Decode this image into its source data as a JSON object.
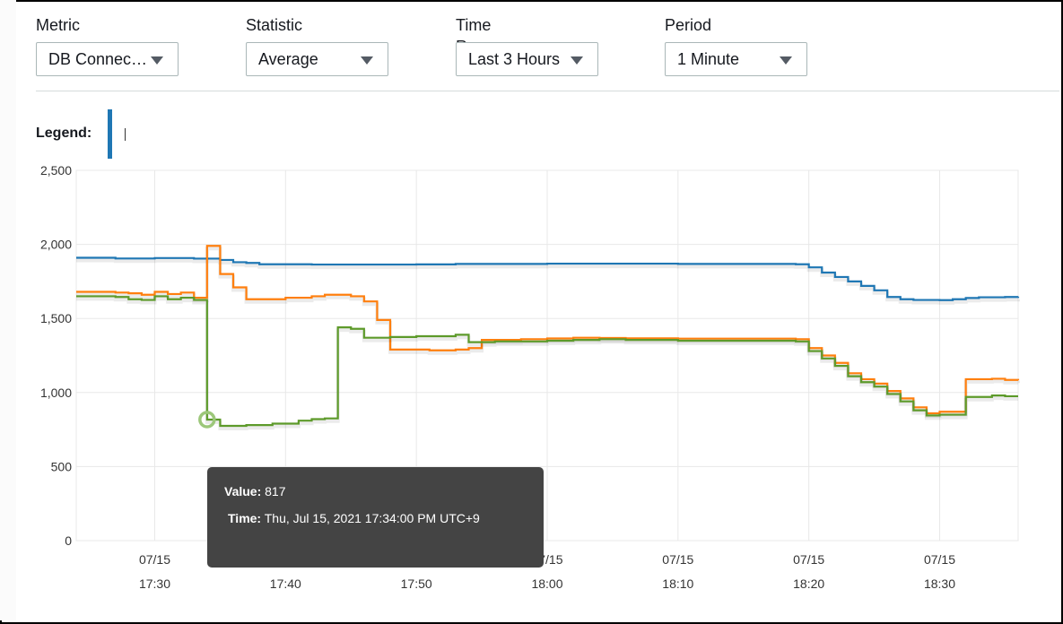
{
  "controls": [
    {
      "label": "Metric",
      "value": "DB Connec…"
    },
    {
      "label": "Statistic",
      "value": "Average"
    },
    {
      "label": "Time Range",
      "value": "Last 3 Hours"
    },
    {
      "label": "Period",
      "value": "1 Minute"
    }
  ],
  "legend": {
    "label": "Legend:"
  },
  "tooltip": {
    "value_label": "Value:",
    "value": "817",
    "time_label": "Time:",
    "time": "Thu, Jul 15, 2021 17:34:00 PM UTC+9"
  },
  "chart_data": {
    "type": "line",
    "step": true,
    "ylim": [
      0,
      2500
    ],
    "yticks": [
      "0",
      "500",
      "1,000",
      "1,500",
      "2,000",
      "2,500"
    ],
    "ytick_values": [
      0,
      500,
      1000,
      1500,
      2000,
      2500
    ],
    "xticks": [
      {
        "date": "07/15",
        "time": "17:30"
      },
      {
        "date": "07/15",
        "time": "17:40"
      },
      {
        "date": "07/15",
        "time": "17:50"
      },
      {
        "date": "07/15",
        "time": "18:00"
      },
      {
        "date": "07/15",
        "time": "18:10"
      },
      {
        "date": "07/15",
        "time": "18:20"
      },
      {
        "date": "07/15",
        "time": "18:30"
      }
    ],
    "xtick_values": [
      "17:30",
      "17:40",
      "17:50",
      "18:00",
      "18:10",
      "18:20",
      "18:30"
    ],
    "xlim": [
      "17:24",
      "18:36"
    ],
    "grid": true,
    "series": [
      {
        "color": "#1f77b4",
        "points": [
          [
            "17:24",
            1910
          ],
          [
            "17:27",
            1905
          ],
          [
            "17:30",
            1908
          ],
          [
            "17:33",
            1904
          ],
          [
            "17:35",
            1895
          ],
          [
            "17:36",
            1880
          ],
          [
            "17:37",
            1875
          ],
          [
            "17:38",
            1866
          ],
          [
            "17:42",
            1864
          ],
          [
            "17:50",
            1865
          ],
          [
            "17:53",
            1868
          ],
          [
            "18:00",
            1870
          ],
          [
            "18:10",
            1868
          ],
          [
            "18:19",
            1866
          ],
          [
            "18:20",
            1845
          ],
          [
            "18:21",
            1810
          ],
          [
            "18:22",
            1780
          ],
          [
            "18:23",
            1750
          ],
          [
            "18:24",
            1720
          ],
          [
            "18:25",
            1690
          ],
          [
            "18:26",
            1645
          ],
          [
            "18:27",
            1630
          ],
          [
            "18:28",
            1625
          ],
          [
            "18:30",
            1624
          ],
          [
            "18:31",
            1630
          ],
          [
            "18:32",
            1638
          ],
          [
            "18:33",
            1643
          ],
          [
            "18:35",
            1645
          ],
          [
            "18:36",
            1648
          ]
        ]
      },
      {
        "color": "#ff7f0e",
        "points": [
          [
            "17:24",
            1680
          ],
          [
            "17:27",
            1675
          ],
          [
            "17:28",
            1670
          ],
          [
            "17:29",
            1660
          ],
          [
            "17:30",
            1680
          ],
          [
            "17:31",
            1665
          ],
          [
            "17:32",
            1675
          ],
          [
            "17:33",
            1640
          ],
          [
            "17:34",
            1990
          ],
          [
            "17:35",
            1800
          ],
          [
            "17:36",
            1710
          ],
          [
            "17:37",
            1630
          ],
          [
            "17:40",
            1640
          ],
          [
            "17:42",
            1650
          ],
          [
            "17:43",
            1660
          ],
          [
            "17:45",
            1650
          ],
          [
            "17:46",
            1615
          ],
          [
            "17:47",
            1490
          ],
          [
            "17:48",
            1290
          ],
          [
            "17:51",
            1285
          ],
          [
            "17:53",
            1290
          ],
          [
            "17:54",
            1300
          ],
          [
            "17:55",
            1355
          ],
          [
            "17:58",
            1360
          ],
          [
            "18:00",
            1365
          ],
          [
            "18:02",
            1370
          ],
          [
            "18:04",
            1368
          ],
          [
            "18:06",
            1366
          ],
          [
            "18:10",
            1364
          ],
          [
            "18:19",
            1360
          ],
          [
            "18:20",
            1300
          ],
          [
            "18:21",
            1250
          ],
          [
            "18:22",
            1200
          ],
          [
            "18:23",
            1130
          ],
          [
            "18:24",
            1090
          ],
          [
            "18:25",
            1060
          ],
          [
            "18:26",
            1010
          ],
          [
            "18:27",
            960
          ],
          [
            "18:28",
            900
          ],
          [
            "18:29",
            860
          ],
          [
            "18:30",
            870
          ],
          [
            "18:32",
            1090
          ],
          [
            "18:34",
            1093
          ],
          [
            "18:35",
            1085
          ],
          [
            "18:36",
            1082
          ]
        ]
      },
      {
        "color": "#5d9a2a",
        "points": [
          [
            "17:24",
            1650
          ],
          [
            "17:27",
            1645
          ],
          [
            "17:28",
            1630
          ],
          [
            "17:29",
            1625
          ],
          [
            "17:30",
            1650
          ],
          [
            "17:31",
            1630
          ],
          [
            "17:32",
            1640
          ],
          [
            "17:33",
            1625
          ],
          [
            "17:34",
            817
          ],
          [
            "17:35",
            775
          ],
          [
            "17:37",
            780
          ],
          [
            "17:39",
            790
          ],
          [
            "17:41",
            810
          ],
          [
            "17:42",
            820
          ],
          [
            "17:43",
            825
          ],
          [
            "17:44",
            1440
          ],
          [
            "17:45",
            1430
          ],
          [
            "17:46",
            1370
          ],
          [
            "17:48",
            1375
          ],
          [
            "17:50",
            1380
          ],
          [
            "17:52",
            1380
          ],
          [
            "17:53",
            1390
          ],
          [
            "17:54",
            1340
          ],
          [
            "17:56",
            1345
          ],
          [
            "18:00",
            1350
          ],
          [
            "18:02",
            1355
          ],
          [
            "18:04",
            1360
          ],
          [
            "18:06",
            1355
          ],
          [
            "18:10",
            1350
          ],
          [
            "18:19",
            1345
          ],
          [
            "18:20",
            1280
          ],
          [
            "18:21",
            1230
          ],
          [
            "18:22",
            1180
          ],
          [
            "18:23",
            1110
          ],
          [
            "18:24",
            1070
          ],
          [
            "18:25",
            1040
          ],
          [
            "18:26",
            990
          ],
          [
            "18:27",
            940
          ],
          [
            "18:28",
            880
          ],
          [
            "18:29",
            845
          ],
          [
            "18:30",
            850
          ],
          [
            "18:32",
            970
          ],
          [
            "18:34",
            980
          ],
          [
            "18:35",
            975
          ],
          [
            "18:36",
            975
          ]
        ]
      }
    ],
    "highlight": {
      "x": "17:34",
      "y": 817
    }
  }
}
